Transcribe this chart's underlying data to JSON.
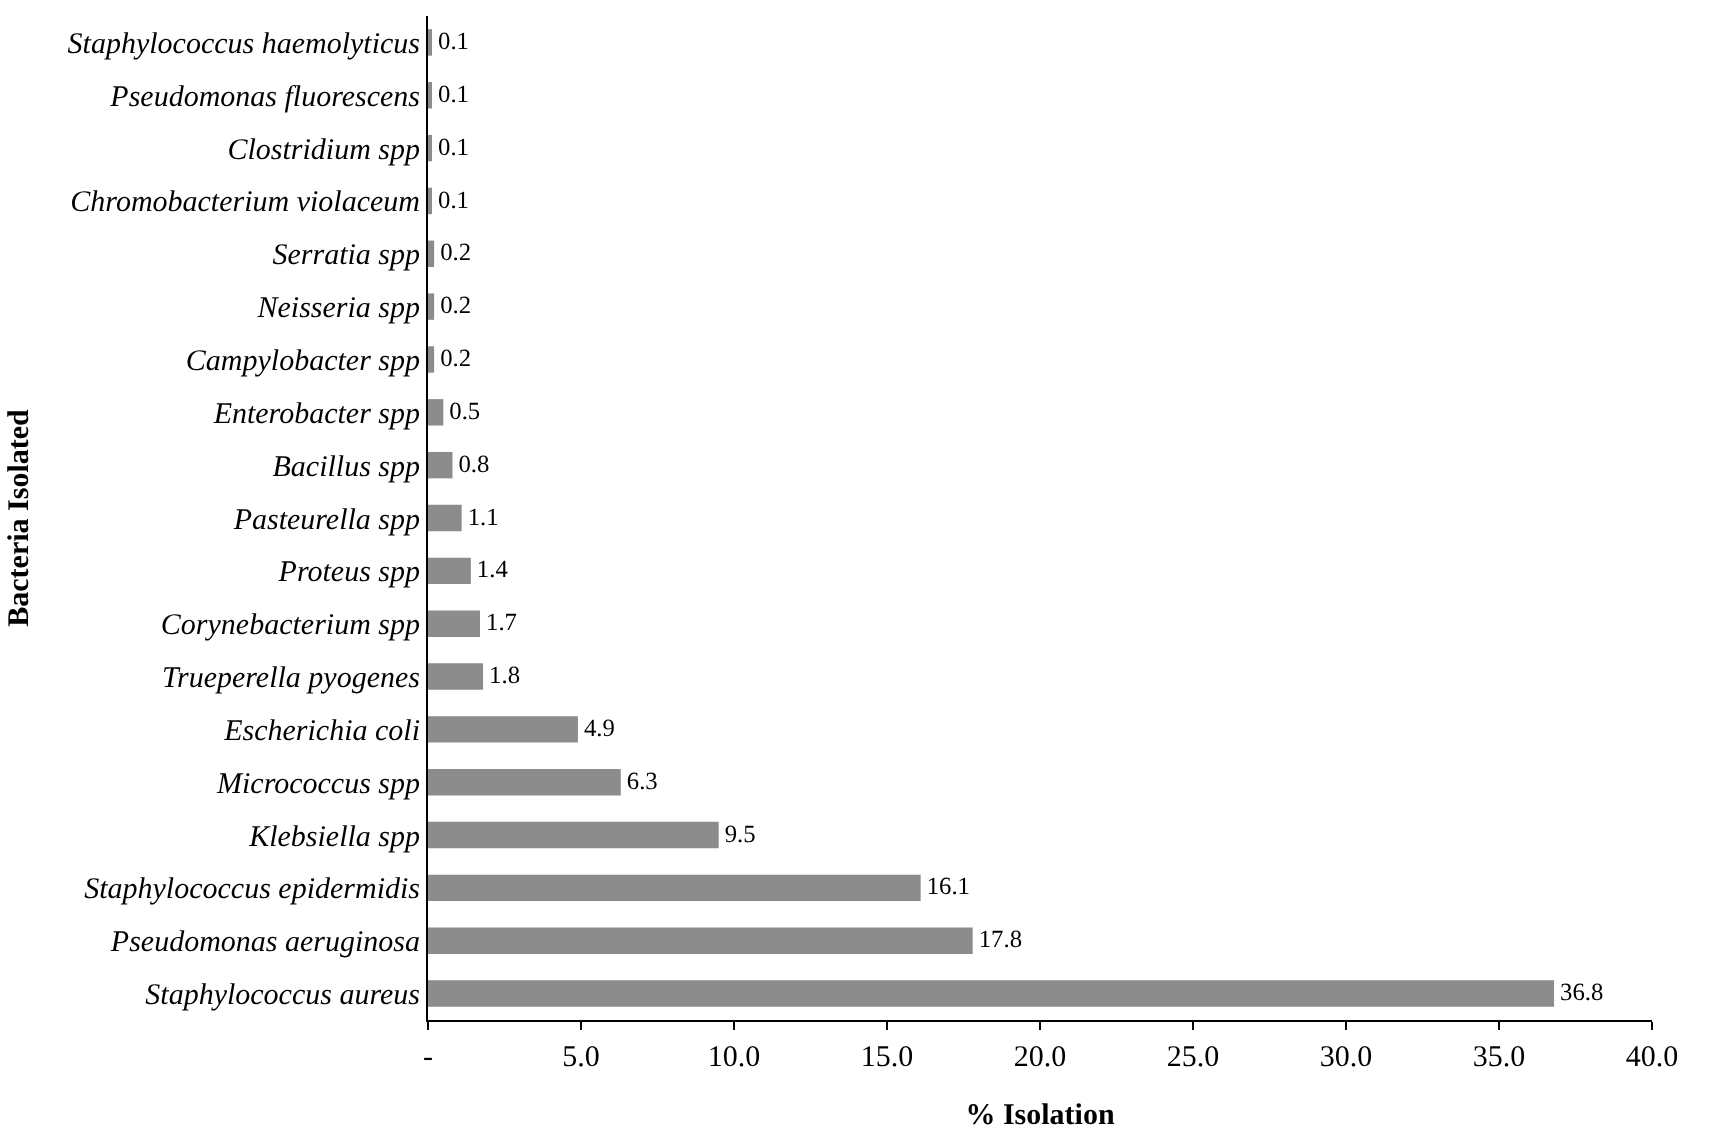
{
  "chart_data": {
    "type": "bar",
    "orientation": "horizontal",
    "xlabel": "% Isolation",
    "ylabel": "Bacteria Isolated",
    "categories": [
      "Staphylococcus haemolyticus",
      "Pseudomonas fluorescens",
      "Clostridium spp",
      "Chromobacterium violaceum",
      "Serratia spp",
      "Neisseria spp",
      "Campylobacter spp",
      "Enterobacter spp",
      "Bacillus spp",
      "Pasteurella spp",
      "Proteus spp",
      "Corynebacterium spp",
      "Trueperella pyogenes",
      "Escherichia coli",
      "Micrococcus spp",
      "Klebsiella spp",
      "Staphylococcus epidermidis",
      "Pseudomonas aeruginosa",
      "Staphylococcus aureus"
    ],
    "values": [
      0.1,
      0.1,
      0.1,
      0.1,
      0.2,
      0.2,
      0.2,
      0.5,
      0.8,
      1.1,
      1.4,
      1.7,
      1.8,
      4.9,
      6.3,
      9.5,
      16.1,
      17.8,
      36.8
    ],
    "color": "#8c8c8c",
    "data_labels": true,
    "xlim": [
      0,
      40
    ],
    "xticks": [
      {
        "value": 0,
        "label": "-"
      },
      {
        "value": 5,
        "label": "5.0"
      },
      {
        "value": 10,
        "label": "10.0"
      },
      {
        "value": 15,
        "label": "15.0"
      },
      {
        "value": 20,
        "label": "20.0"
      },
      {
        "value": 25,
        "label": "25.0"
      },
      {
        "value": 30,
        "label": "30.0"
      },
      {
        "value": 35,
        "label": "35.0"
      },
      {
        "value": 40,
        "label": "40.0"
      }
    ]
  }
}
